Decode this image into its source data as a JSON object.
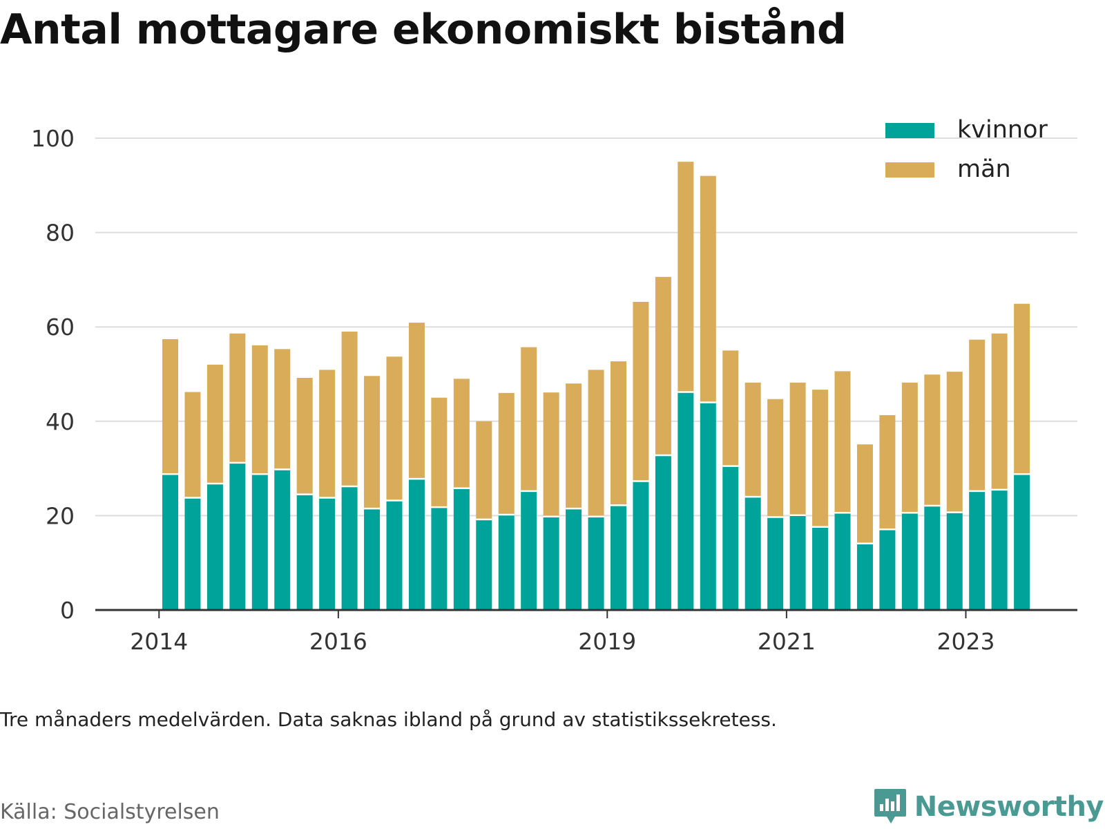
{
  "title": "Antal mottagare ekonomiskt bistånd",
  "note": "Tre månaders medelvärden. Data saknas ibland på grund av statistikssekretess.",
  "source": "Källa: Socialstyrelsen",
  "brand": {
    "name": "Newsworthy",
    "icon": "newsworthy-logo-icon"
  },
  "colors": {
    "kvinnor": "#00a39a",
    "man": "#d9ac5a",
    "grid": "#dddddd",
    "axis": "#333333"
  },
  "chart_data": {
    "type": "bar",
    "stacked": true,
    "ylim": [
      0,
      100
    ],
    "yticks": [
      0,
      20,
      40,
      60,
      80,
      100
    ],
    "xticks": [
      {
        "label": "2014",
        "index": -1
      },
      {
        "label": "2016",
        "index": 7
      },
      {
        "label": "2019",
        "index": 19
      },
      {
        "label": "2021",
        "index": 27
      },
      {
        "label": "2023",
        "index": 35
      }
    ],
    "legend": {
      "placement": "top-right"
    },
    "series": [
      {
        "name": "kvinnor",
        "values": [
          28.8,
          23.8,
          26.8,
          31.2,
          28.8,
          29.8,
          24.5,
          23.8,
          26.2,
          21.5,
          23.2,
          27.8,
          21.8,
          25.8,
          19.2,
          20.2,
          25.2,
          19.8,
          21.5,
          19.8,
          22.2,
          27.3,
          32.8,
          46.2,
          44,
          30.5,
          24,
          19.7,
          20.1,
          17.6,
          20.6,
          14.1,
          17.1,
          20.6,
          22.1,
          20.7,
          25.2,
          25.5,
          28.8
        ]
      },
      {
        "name": "män",
        "values": [
          28.6,
          22.4,
          25.2,
          27.4,
          27.3,
          25.5,
          24.7,
          27.1,
          32.8,
          28.1,
          30.5,
          33.1,
          23.2,
          23.2,
          20.8,
          25.8,
          30.5,
          26.3,
          26.5,
          31.1,
          30.5,
          38,
          37.8,
          48.8,
          48,
          24.5,
          24.2,
          25,
          28.1,
          29.1,
          30,
          21,
          24.2,
          27.6,
          27.8,
          29.8,
          32.1,
          33.1,
          36.1
        ]
      }
    ]
  }
}
